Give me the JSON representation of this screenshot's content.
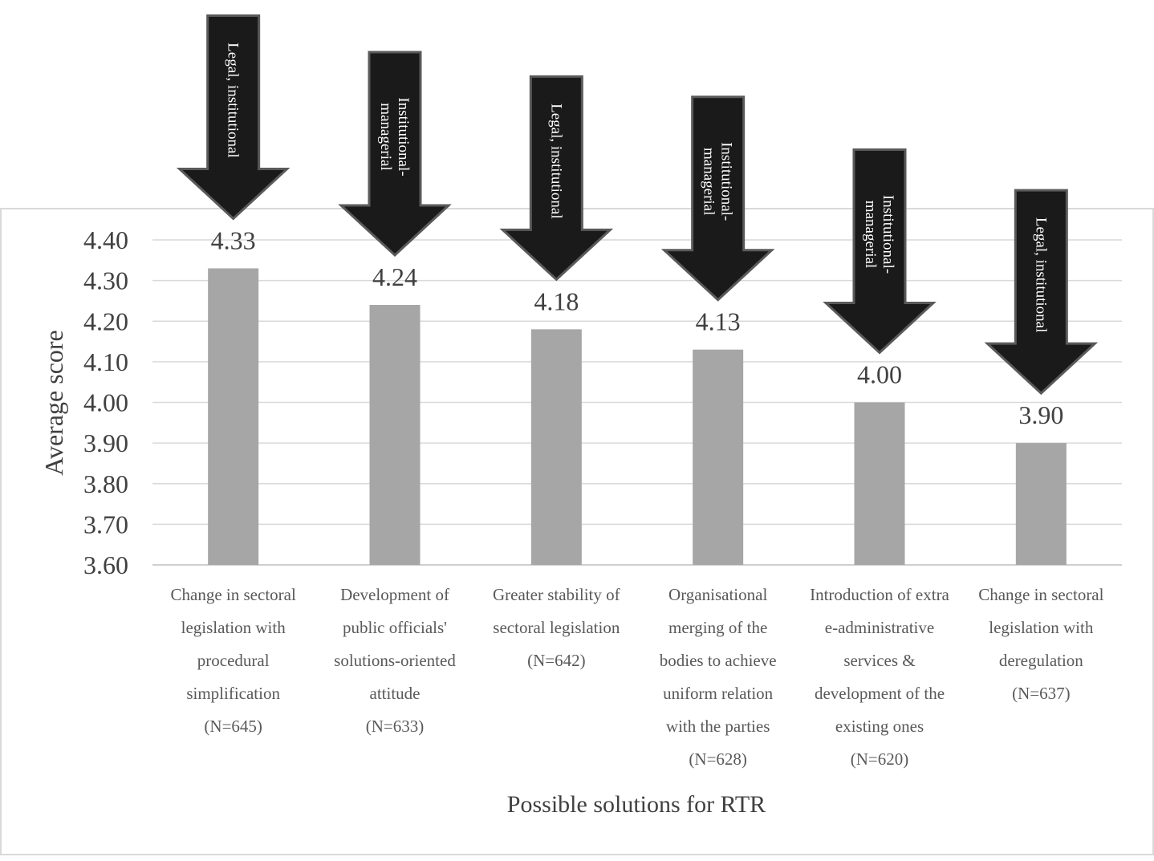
{
  "chart_data": {
    "type": "bar",
    "xlabel": "Possible solutions for RTR",
    "ylabel": "Average score",
    "ylim": [
      3.6,
      4.4
    ],
    "yticks": [
      "4.40",
      "4.30",
      "4.20",
      "4.10",
      "4.00",
      "3.90",
      "3.80",
      "3.70",
      "3.60"
    ],
    "grid": true,
    "bar_color": "#a6a6a6",
    "arrow_color": "#1a1a1a",
    "categories": [
      {
        "lines": [
          "Change in sectoral",
          "legislation  with",
          "procedural",
          "simplification",
          "(N=645)"
        ],
        "value": 4.33,
        "value_label": "4.33",
        "arrow": [
          "Legal, institutional"
        ]
      },
      {
        "lines": [
          "Development of",
          "public officials'",
          "solutions-oriented",
          "attitude",
          "(N=633)"
        ],
        "value": 4.24,
        "value_label": "4.24",
        "arrow": [
          "Institutional-",
          "managerial"
        ]
      },
      {
        "lines": [
          "Greater stability  of",
          "sectoral legislation",
          "(N=642)"
        ],
        "value": 4.18,
        "value_label": "4.18",
        "arrow": [
          "Legal, institutional"
        ]
      },
      {
        "lines": [
          "Organisational",
          "merging of the",
          "bodies to achieve",
          "uniform relation",
          "with the parties",
          "(N=628)"
        ],
        "value": 4.13,
        "value_label": "4.13",
        "arrow": [
          "Institutional-",
          "managerial"
        ]
      },
      {
        "lines": [
          "Introduction of extra",
          "e-administrative",
          "services &",
          "development of the",
          "existing ones",
          "(N=620)"
        ],
        "value": 4.0,
        "value_label": "4.00",
        "arrow": [
          "Institutional-",
          "managerial"
        ]
      },
      {
        "lines": [
          "Change in sectoral",
          "legislation  with",
          "deregulation",
          "(N=637)"
        ],
        "value": 3.9,
        "value_label": "3.90",
        "arrow": [
          "Legal, institutional"
        ]
      }
    ]
  }
}
